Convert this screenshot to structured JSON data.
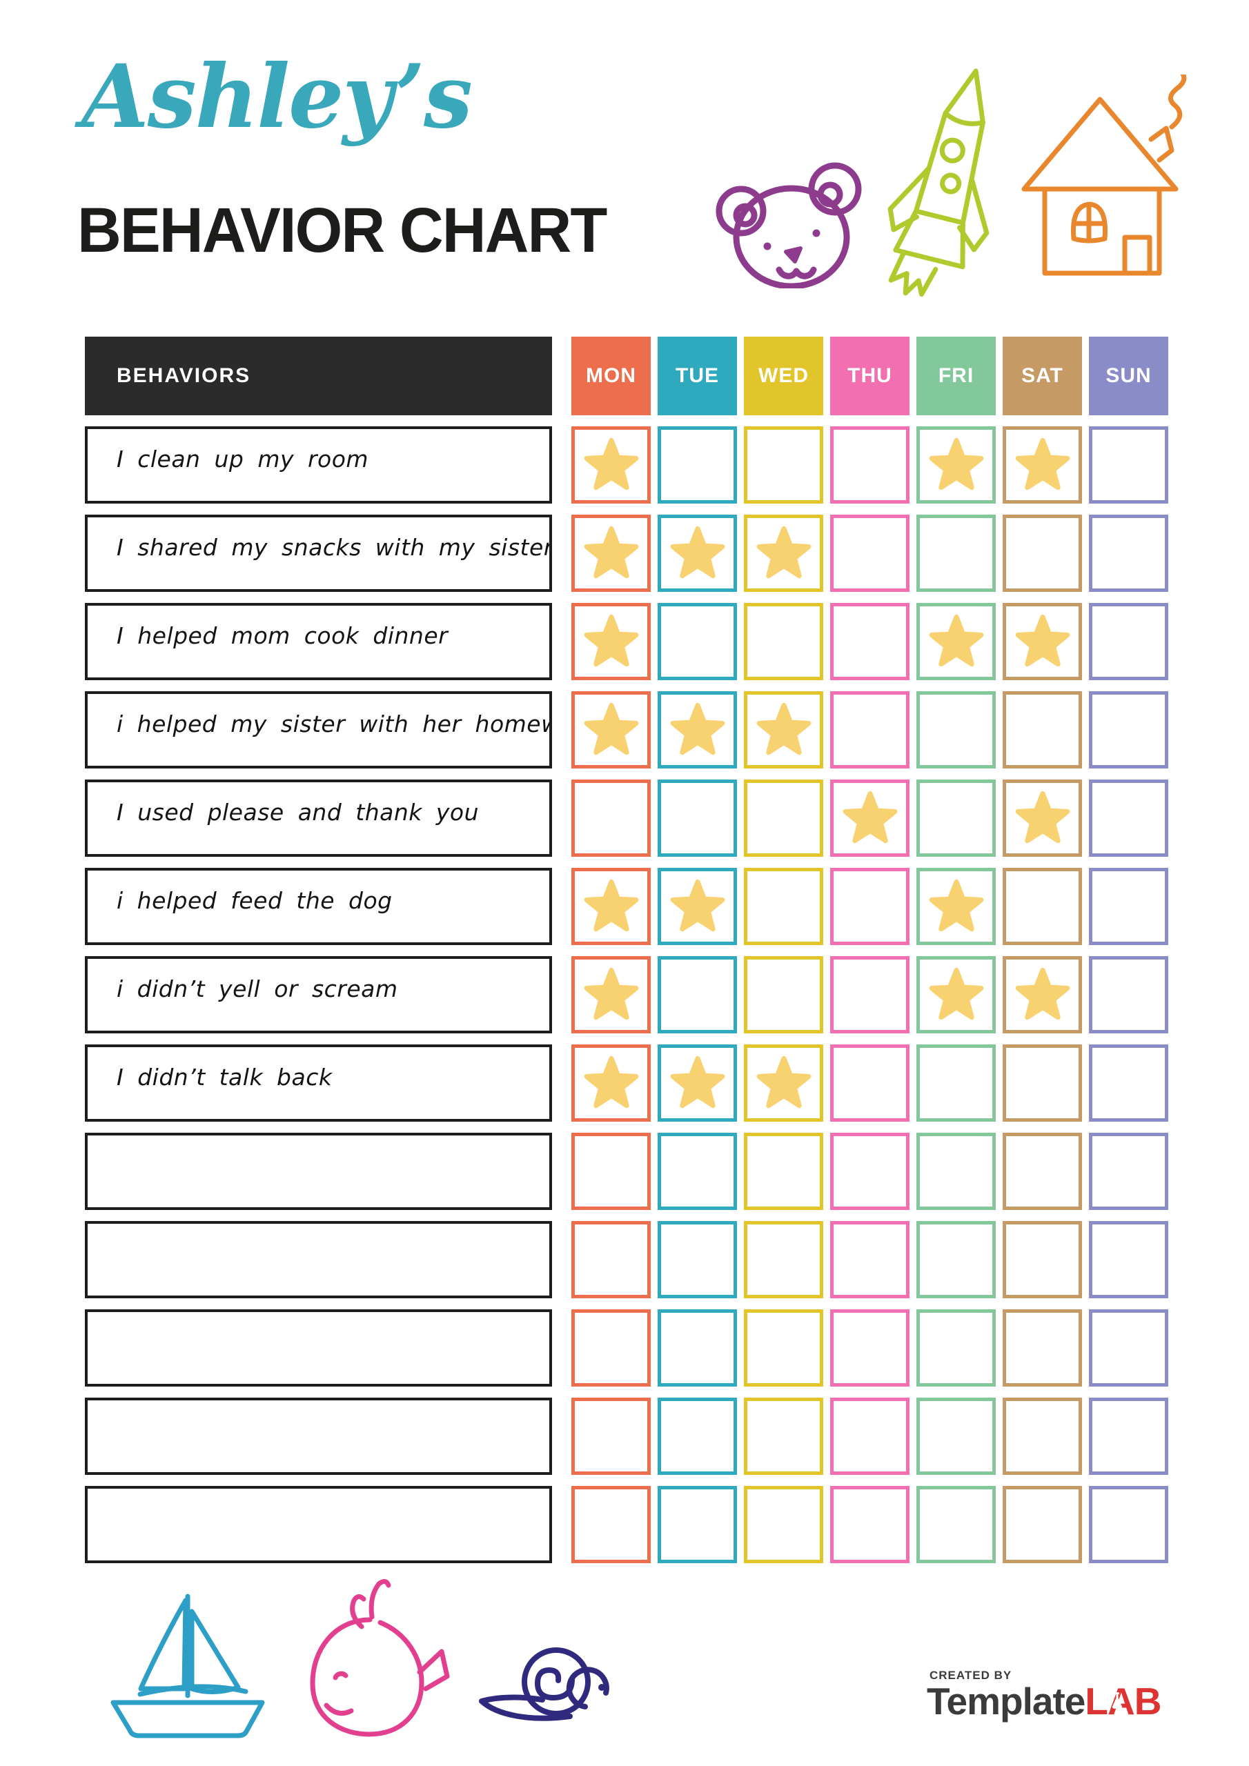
{
  "header": {
    "script_title": "Ashley’s",
    "script_title_color": "#38A8BA",
    "main_title": "BEHAVIOR CHART",
    "main_title_color": "#1d1d1b"
  },
  "decorations": {
    "top": [
      {
        "name": "bear-icon",
        "color": "#8D3C8D"
      },
      {
        "name": "rocket-icon",
        "color": "#AFCA2D"
      },
      {
        "name": "house-icon",
        "color": "#E8872E"
      }
    ],
    "bottom": [
      {
        "name": "sailboat-icon",
        "color": "#2D9FC6"
      },
      {
        "name": "whale-icon",
        "color": "#E23F8F"
      },
      {
        "name": "snail-icon",
        "color": "#2F2A7E"
      }
    ]
  },
  "table": {
    "behaviors_header": "BEHAVIORS",
    "header_bg": "#2B2B2B",
    "star_color": "#F8D170",
    "days": [
      {
        "label": "MON",
        "color": "#EC6E4D"
      },
      {
        "label": "TUE",
        "color": "#2FA9BD"
      },
      {
        "label": "WED",
        "color": "#E2C52B"
      },
      {
        "label": "THU",
        "color": "#F26FB2"
      },
      {
        "label": "FRI",
        "color": "#83C89B"
      },
      {
        "label": "SAT",
        "color": "#C59A65"
      },
      {
        "label": "SUN",
        "color": "#8A8CC8"
      }
    ],
    "rows": [
      {
        "behavior": "I clean up my room",
        "stars": [
          "MON",
          "FRI",
          "SAT"
        ]
      },
      {
        "behavior": "I shared my snacks with my sister",
        "stars": [
          "MON",
          "TUE",
          "WED"
        ]
      },
      {
        "behavior": "I helped mom cook dinner",
        "stars": [
          "MON",
          "FRI",
          "SAT"
        ]
      },
      {
        "behavior": "i helped my sister with her homework",
        "stars": [
          "MON",
          "TUE",
          "WED"
        ]
      },
      {
        "behavior": "I used please and thank you",
        "stars": [
          "THU",
          "SAT"
        ]
      },
      {
        "behavior": "i helped feed the dog",
        "stars": [
          "MON",
          "TUE",
          "FRI"
        ]
      },
      {
        "behavior": "i didn’t yell or scream",
        "stars": [
          "MON",
          "FRI",
          "SAT"
        ]
      },
      {
        "behavior": "I didn’t talk back",
        "stars": [
          "MON",
          "TUE",
          "WED"
        ]
      },
      {
        "behavior": "",
        "stars": []
      },
      {
        "behavior": "",
        "stars": []
      },
      {
        "behavior": "",
        "stars": []
      },
      {
        "behavior": "",
        "stars": []
      },
      {
        "behavior": "",
        "stars": []
      }
    ]
  },
  "footer": {
    "created_by": "CREATED BY",
    "brand_name": "Template",
    "brand_suffix": "LAB",
    "brand_dark_color": "#3C3B3B",
    "brand_red_color": "#DD3333"
  }
}
